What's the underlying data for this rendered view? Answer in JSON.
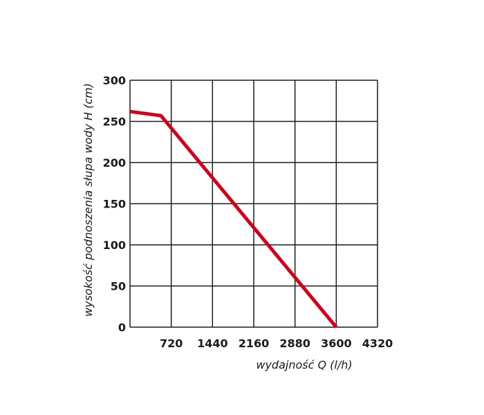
{
  "chart_data": {
    "type": "line",
    "title": "",
    "xlabel": "wydajność Q (l/h)",
    "ylabel": "wysokość podnoszenia słupa wody H (cm)",
    "xlim": [
      0,
      4320
    ],
    "ylim": [
      0,
      300
    ],
    "x_ticks": [
      720,
      1440,
      2160,
      2880,
      3600,
      4320
    ],
    "y_ticks": [
      0,
      50,
      100,
      150,
      200,
      250,
      300
    ],
    "grid": true,
    "legend": "none",
    "series": [
      {
        "color": "#d3001b",
        "points": [
          [
            0,
            262
          ],
          [
            540,
            257
          ],
          [
            3600,
            0
          ]
        ]
      }
    ]
  }
}
